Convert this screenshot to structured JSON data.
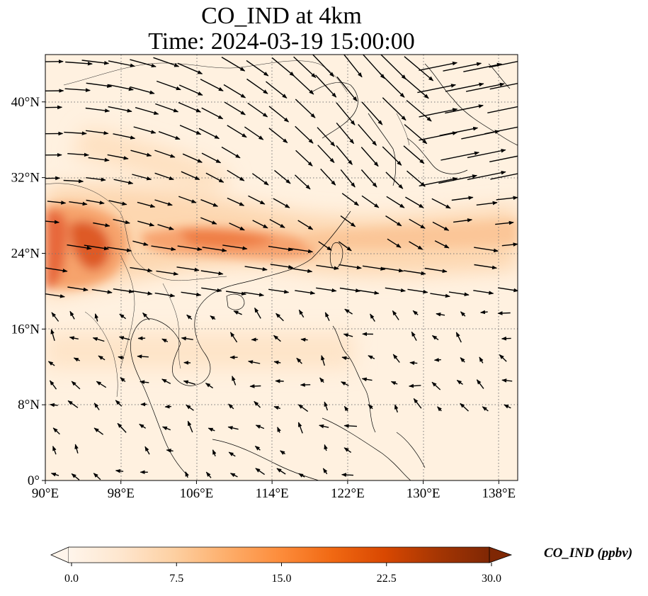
{
  "title": {
    "line1": "CO_IND at 4km",
    "line2": "Time: 2024-03-19 15:00:00"
  },
  "map": {
    "lon_range": [
      90,
      140
    ],
    "lat_range": [
      0,
      45
    ],
    "gridlines": true,
    "lon_ticks": [
      {
        "value": 90,
        "label": "90°E"
      },
      {
        "value": 98,
        "label": "98°E"
      },
      {
        "value": 106,
        "label": "106°E"
      },
      {
        "value": 114,
        "label": "114°E"
      },
      {
        "value": 122,
        "label": "122°E"
      },
      {
        "value": 130,
        "label": "130°E"
      },
      {
        "value": 138,
        "label": "138°E"
      }
    ],
    "lat_ticks": [
      {
        "value": 0,
        "label": "0°"
      },
      {
        "value": 8,
        "label": "8°N"
      },
      {
        "value": 16,
        "label": "16°N"
      },
      {
        "value": 24,
        "label": "24°N"
      },
      {
        "value": 32,
        "label": "32°N"
      },
      {
        "value": 40,
        "label": "40°N"
      }
    ]
  },
  "colorbar": {
    "label": "CO_IND (ppbv)",
    "min": 0,
    "max": 30,
    "ticks": [
      "0.0",
      "7.5",
      "15.0",
      "22.5",
      "30.0"
    ],
    "colors": [
      "#fff5eb",
      "#fee6ce",
      "#fdd0a2",
      "#fdae6b",
      "#fd8d3c",
      "#f16913",
      "#d94801",
      "#a63603",
      "#7f2704"
    ],
    "extend": "both"
  }
}
